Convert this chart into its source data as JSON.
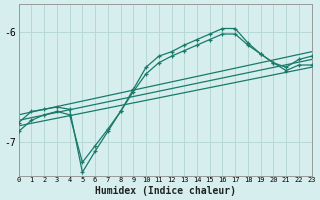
{
  "xlabel": "Humidex (Indice chaleur)",
  "background_color": "#d6eeee",
  "grid_color": "#b8d8d8",
  "line_color": "#1a7a6a",
  "xlim": [
    0,
    23
  ],
  "ylim": [
    -7.3,
    -5.75
  ],
  "yticks": [
    -7,
    -6
  ],
  "xticks": [
    0,
    1,
    2,
    3,
    4,
    5,
    6,
    7,
    8,
    9,
    10,
    11,
    12,
    13,
    14,
    15,
    16,
    17,
    18,
    19,
    20,
    21,
    22,
    23
  ],
  "series_jagged1": {
    "x": [
      0,
      1,
      2,
      3,
      4,
      5,
      6,
      7,
      8,
      9,
      10,
      11,
      12,
      13,
      14,
      15,
      16,
      17,
      18,
      19,
      20,
      21,
      22,
      23
    ],
    "y": [
      -6.82,
      -6.72,
      -6.7,
      -6.68,
      -6.7,
      -7.27,
      -7.08,
      -6.9,
      -6.72,
      -6.52,
      -6.32,
      -6.22,
      -6.18,
      -6.12,
      -6.07,
      -6.02,
      -5.97,
      -5.97,
      -6.1,
      -6.2,
      -6.28,
      -6.35,
      -6.3,
      -6.3
    ]
  },
  "series_jagged2": {
    "x": [
      0,
      1,
      2,
      3,
      4,
      5,
      6,
      7,
      8,
      9,
      10,
      11,
      12,
      13,
      14,
      15,
      16,
      17,
      18,
      19,
      20,
      21,
      22,
      23
    ],
    "y": [
      -6.9,
      -6.8,
      -6.75,
      -6.72,
      -6.75,
      -7.18,
      -7.03,
      -6.88,
      -6.72,
      -6.54,
      -6.38,
      -6.28,
      -6.22,
      -6.17,
      -6.12,
      -6.07,
      -6.02,
      -6.02,
      -6.12,
      -6.2,
      -6.28,
      -6.32,
      -6.25,
      -6.22
    ]
  },
  "series_smooth1": {
    "x": [
      0,
      23
    ],
    "y": [
      -6.75,
      -6.18
    ]
  },
  "series_smooth2": {
    "x": [
      0,
      23
    ],
    "y": [
      -6.8,
      -6.25
    ]
  },
  "series_smooth3": {
    "x": [
      0,
      23
    ],
    "y": [
      -6.85,
      -6.32
    ]
  }
}
